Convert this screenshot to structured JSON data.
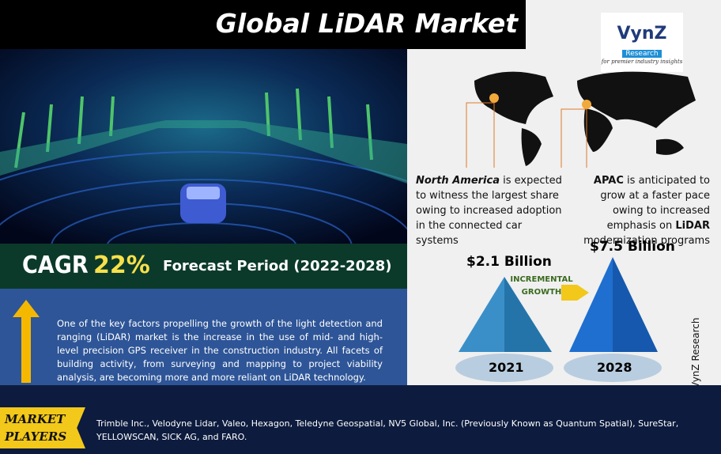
{
  "title": "Global LiDAR Market",
  "logo": {
    "name": "VynZ",
    "sub": "Research",
    "tagline": "for premier industry insights"
  },
  "cagr": {
    "label": "CAGR",
    "value": "22%"
  },
  "forecast": "Forecast Period (2022-2028)",
  "regions": [
    {
      "name": "North America",
      "text": "is expected to witness the largest share owing to increased adoption in the connected car systems"
    },
    {
      "name": "APAC",
      "text": "is anticipated to grow at a faster pace owing to increased emphasis on",
      "bold": "LiDAR",
      "tail": "modernization programs"
    }
  ],
  "growth": {
    "label": "INCREMENTAL GROWTH",
    "items": [
      {
        "value": "$2.1 Billion",
        "year": "2021"
      },
      {
        "value": "$7.5 Billion",
        "year": "2028"
      }
    ]
  },
  "description": "One of the key factors propelling the growth of the light detection and ranging (LiDAR) market is the increase in the use of mid- and high-level precision GPS receiver in the construction industry. All facets of building activity, from surveying and mapping to project viability analysis, are becoming more and more reliant on LiDAR technology.",
  "players": {
    "label": "MARKET PLAYERS",
    "text": "Trimble Inc., Velodyne Lidar, Valeo, Hexagon, Teledyne Geospatial, NV5 Global, Inc. (Previously Known as Quantum Spatial), SureStar, YELLOWSCAN, SICK AG, and FARO."
  },
  "copyright": "© VynZ Research"
}
